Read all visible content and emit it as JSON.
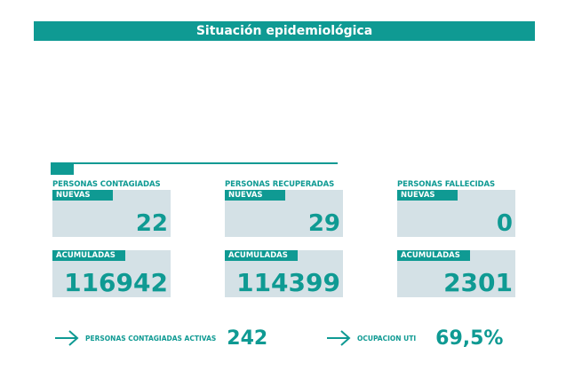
{
  "header": {
    "title": "Situación epidemiológica"
  },
  "progress": {
    "fill_fraction": 0.08
  },
  "cards": [
    {
      "section": "PERSONAS CONTAGIADAS",
      "new_label": "NUEVAS",
      "new_value": "22",
      "acc_label": "ACUMULADAS",
      "acc_value": "116942"
    },
    {
      "section": "PERSONAS RECUPERADAS",
      "new_label": "NUEVAS",
      "new_value": "29",
      "acc_label": "ACUMULADAS",
      "acc_value": "114399"
    },
    {
      "section": "PERSONAS FALLECIDAS",
      "new_label": "NUEVAS",
      "new_value": "0",
      "acc_label": "ACUMULADAS",
      "acc_value": "2301"
    }
  ],
  "summary": {
    "active_label": "PERSONAS CONTAGIADAS ACTIVAS",
    "active_value": "242",
    "uti_label": "OCUPACION UTI",
    "uti_value": "69,5%"
  },
  "colors": {
    "accent": "#0f9a93",
    "card_bg": "#d4e1e6"
  },
  "icons": {
    "arrow": "arrow-right-icon"
  }
}
